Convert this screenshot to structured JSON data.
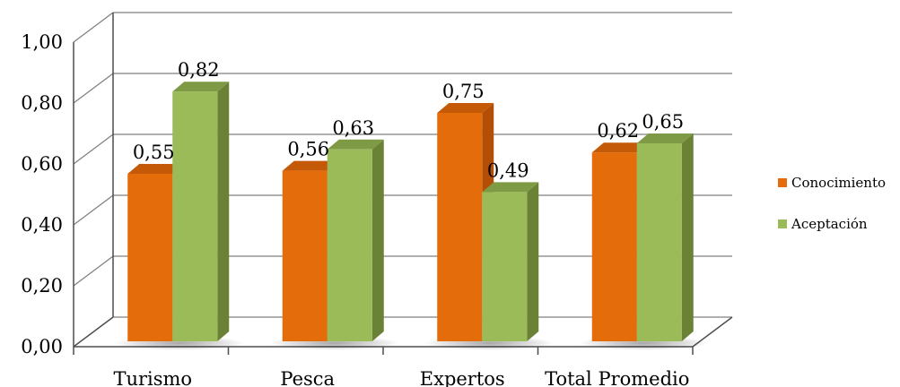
{
  "chart_data": {
    "type": "bar",
    "categories": [
      "Turismo",
      "Pesca",
      "Expertos",
      "Total Promedio"
    ],
    "series": [
      {
        "name": "Conocimiento",
        "values": [
          0.55,
          0.56,
          0.75,
          0.62
        ],
        "labels": [
          "0,55",
          "0,56",
          "0,75",
          "0,62"
        ]
      },
      {
        "name": "Aceptación",
        "values": [
          0.82,
          0.63,
          0.49,
          0.65
        ],
        "labels": [
          "0,82",
          "0,63",
          "0,49",
          "0,65"
        ]
      }
    ],
    "yticks": [
      0,
      0.2,
      0.4,
      0.6,
      0.8,
      1.0
    ],
    "ytick_labels": [
      "0,00",
      "0,20",
      "0,40",
      "0,60",
      "0,80",
      "1,00"
    ],
    "ylim": [
      0,
      1
    ],
    "grid": true,
    "legend_position": "right",
    "colors": {
      "Conocimiento": {
        "front": "#e46c0a",
        "top": "#c45a08",
        "side": "#b34e06"
      },
      "Aceptación": {
        "front": "#9bbb59",
        "top": "#7f9a45",
        "side": "#6b8236"
      }
    }
  }
}
